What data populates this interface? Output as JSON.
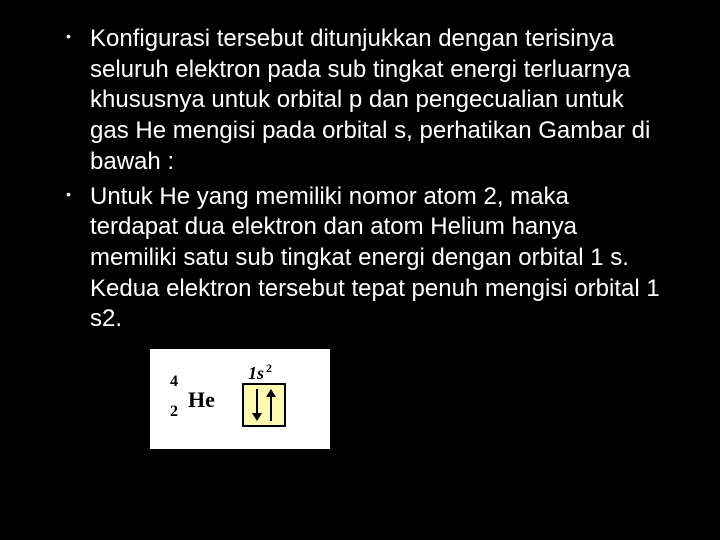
{
  "slide": {
    "bullets": [
      "Konfigurasi tersebut ditunjukkan dengan terisinya seluruh elektron pada sub tingkat energi terluarnya khususnya untuk orbital p dan pengecualian untuk gas He mengisi pada orbital s, perhatikan Gambar di bawah :",
      "Untuk He yang memiliki nomor atom 2, maka terdapat dua elektron dan atom Helium hanya memiliki satu sub tingkat energi dengan orbital 1 s. Kedua elektron tersebut tepat penuh mengisi orbital 1 s2."
    ]
  },
  "diagram": {
    "element_symbol": "He",
    "mass_number": "4",
    "atomic_number": "2",
    "orbital_base": "1s",
    "orbital_sup": "2",
    "box_bg": "#fffab0",
    "box_border": "#000000",
    "arrow_colors": "#000000"
  },
  "style": {
    "background": "#000000",
    "text_color": "#ffffff",
    "font_size_body": 24
  }
}
